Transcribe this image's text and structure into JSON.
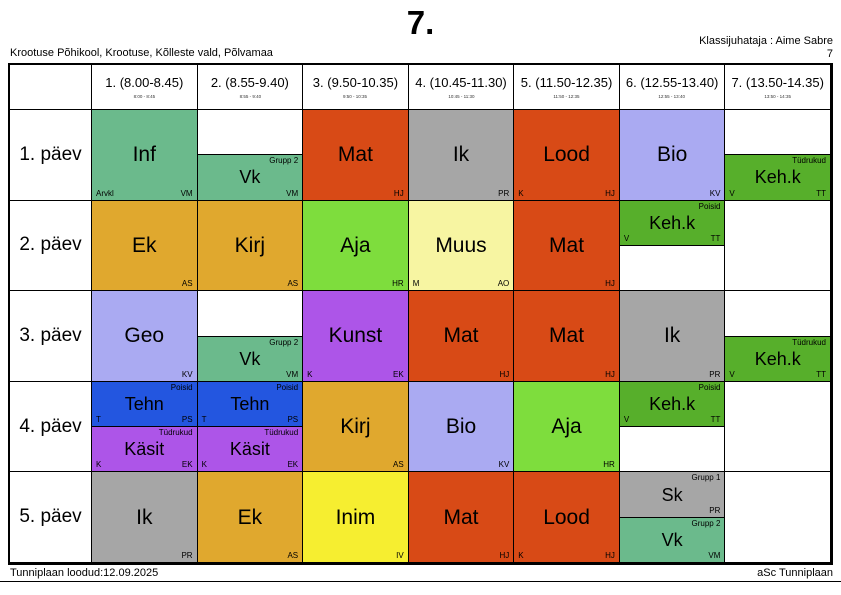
{
  "header": {
    "title": "7.",
    "school": "Krootuse Põhikool, Krootuse, Kõlleste vald, Põlvamaa",
    "class_teacher": "Klassijuhataja : Aime Sabre",
    "class_number": "7"
  },
  "footer": {
    "created": "Tunniplaan loodud:12.09.2025",
    "app": "aSc Tunniplaan"
  },
  "colors": {
    "green": "#6bba8c",
    "kelly": "#57af2b",
    "red": "#d84a16",
    "gray": "#a6a6a6",
    "periwinkle": "#aaaaf2",
    "amber": "#e0a82e",
    "chartreuse": "#7edd3d",
    "pale_yellow": "#f7f5a2",
    "yellow": "#f6ee30",
    "blue": "#2356e0",
    "purple": "#ad55e8",
    "white": "#ffffff"
  },
  "columns": [
    {
      "label": "1. (8.00-8.45)",
      "time": "8:00 - 8:45"
    },
    {
      "label": "2. (8.55-9.40)",
      "time": "8:55 - 9:40"
    },
    {
      "label": "3. (9.50-10.35)",
      "time": "9:50 - 10:35"
    },
    {
      "label": "4. (10.45-11.30)",
      "time": "10:45 - 11:30"
    },
    {
      "label": "5. (11.50-12.35)",
      "time": "11:50 - 12:35"
    },
    {
      "label": "6. (12.55-13.40)",
      "time": "12:55 - 13:40"
    },
    {
      "label": "7. (13.50-14.35)",
      "time": "13:50 - 14:35"
    }
  ],
  "timetable": {
    "days": [
      {
        "label": "1. päev",
        "cells": [
          {
            "type": "single",
            "subject": "Inf",
            "color": "green",
            "bl": "Arvkl",
            "br": "VM"
          },
          {
            "type": "split",
            "top": {
              "empty": true
            },
            "bottom": {
              "subject": "Vk",
              "color": "green",
              "tr": "Grupp 2",
              "br": "VM"
            }
          },
          {
            "type": "single",
            "subject": "Mat",
            "color": "red",
            "br": "HJ"
          },
          {
            "type": "single",
            "subject": "Ik",
            "color": "gray",
            "br": "PR"
          },
          {
            "type": "single",
            "subject": "Lood",
            "color": "red",
            "bl": "K",
            "br": "HJ"
          },
          {
            "type": "single",
            "subject": "Bio",
            "color": "periwinkle",
            "br": "KV"
          },
          {
            "type": "split",
            "top": {
              "empty": true
            },
            "bottom": {
              "subject": "Keh.k",
              "color": "kelly",
              "tr": "Tüdrukud",
              "bl": "V",
              "br": "TT"
            }
          }
        ]
      },
      {
        "label": "2. päev",
        "cells": [
          {
            "type": "single",
            "subject": "Ek",
            "color": "amber",
            "br": "AS"
          },
          {
            "type": "single",
            "subject": "Kirj",
            "color": "amber",
            "br": "AS"
          },
          {
            "type": "single",
            "subject": "Aja",
            "color": "chartreuse",
            "br": "HR"
          },
          {
            "type": "single",
            "subject": "Muus",
            "color": "pale_yellow",
            "bl": "M",
            "br": "AO"
          },
          {
            "type": "single",
            "subject": "Mat",
            "color": "red",
            "br": "HJ"
          },
          {
            "type": "split",
            "top": {
              "subject": "Keh.k",
              "color": "kelly",
              "tr": "Poisid",
              "bl": "V",
              "br": "TT"
            },
            "bottom": {
              "empty": true
            }
          },
          {
            "type": "empty"
          }
        ]
      },
      {
        "label": "3. päev",
        "cells": [
          {
            "type": "single",
            "subject": "Geo",
            "color": "periwinkle",
            "br": "KV"
          },
          {
            "type": "split",
            "top": {
              "empty": true
            },
            "bottom": {
              "subject": "Vk",
              "color": "green",
              "tr": "Grupp 2",
              "br": "VM"
            }
          },
          {
            "type": "single",
            "subject": "Kunst",
            "color": "purple",
            "bl": "K",
            "br": "EK"
          },
          {
            "type": "single",
            "subject": "Mat",
            "color": "red",
            "br": "HJ"
          },
          {
            "type": "single",
            "subject": "Mat",
            "color": "red",
            "br": "HJ"
          },
          {
            "type": "single",
            "subject": "Ik",
            "color": "gray",
            "br": "PR"
          },
          {
            "type": "split",
            "top": {
              "empty": true
            },
            "bottom": {
              "subject": "Keh.k",
              "color": "kelly",
              "tr": "Tüdrukud",
              "bl": "V",
              "br": "TT"
            }
          }
        ]
      },
      {
        "label": "4. päev",
        "cells": [
          {
            "type": "split",
            "top": {
              "subject": "Tehn",
              "color": "blue",
              "tr": "Poisid",
              "bl": "T",
              "br": "PS"
            },
            "bottom": {
              "subject": "Käsit",
              "color": "purple",
              "tr": "Tüdrukud",
              "bl": "K",
              "br": "EK"
            }
          },
          {
            "type": "split",
            "top": {
              "subject": "Tehn",
              "color": "blue",
              "tr": "Poisid",
              "bl": "T",
              "br": "PS"
            },
            "bottom": {
              "subject": "Käsit",
              "color": "purple",
              "tr": "Tüdrukud",
              "bl": "K",
              "br": "EK"
            }
          },
          {
            "type": "single",
            "subject": "Kirj",
            "color": "amber",
            "br": "AS"
          },
          {
            "type": "single",
            "subject": "Bio",
            "color": "periwinkle",
            "br": "KV"
          },
          {
            "type": "single",
            "subject": "Aja",
            "color": "chartreuse",
            "br": "HR"
          },
          {
            "type": "split",
            "top": {
              "subject": "Keh.k",
              "color": "kelly",
              "tr": "Poisid",
              "bl": "V",
              "br": "TT"
            },
            "bottom": {
              "empty": true
            }
          },
          {
            "type": "empty"
          }
        ]
      },
      {
        "label": "5. päev",
        "cells": [
          {
            "type": "single",
            "subject": "Ik",
            "color": "gray",
            "br": "PR"
          },
          {
            "type": "single",
            "subject": "Ek",
            "color": "amber",
            "br": "AS"
          },
          {
            "type": "single",
            "subject": "Inim",
            "color": "yellow",
            "br": "IV"
          },
          {
            "type": "single",
            "subject": "Mat",
            "color": "red",
            "br": "HJ"
          },
          {
            "type": "single",
            "subject": "Lood",
            "color": "red",
            "bl": "K",
            "br": "HJ"
          },
          {
            "type": "split",
            "top": {
              "subject": "Sk",
              "color": "gray",
              "tr": "Grupp 1",
              "br": "PR"
            },
            "bottom": {
              "subject": "Vk",
              "color": "green",
              "tr": "Grupp 2",
              "br": "VM"
            }
          },
          {
            "type": "empty"
          }
        ]
      }
    ]
  }
}
